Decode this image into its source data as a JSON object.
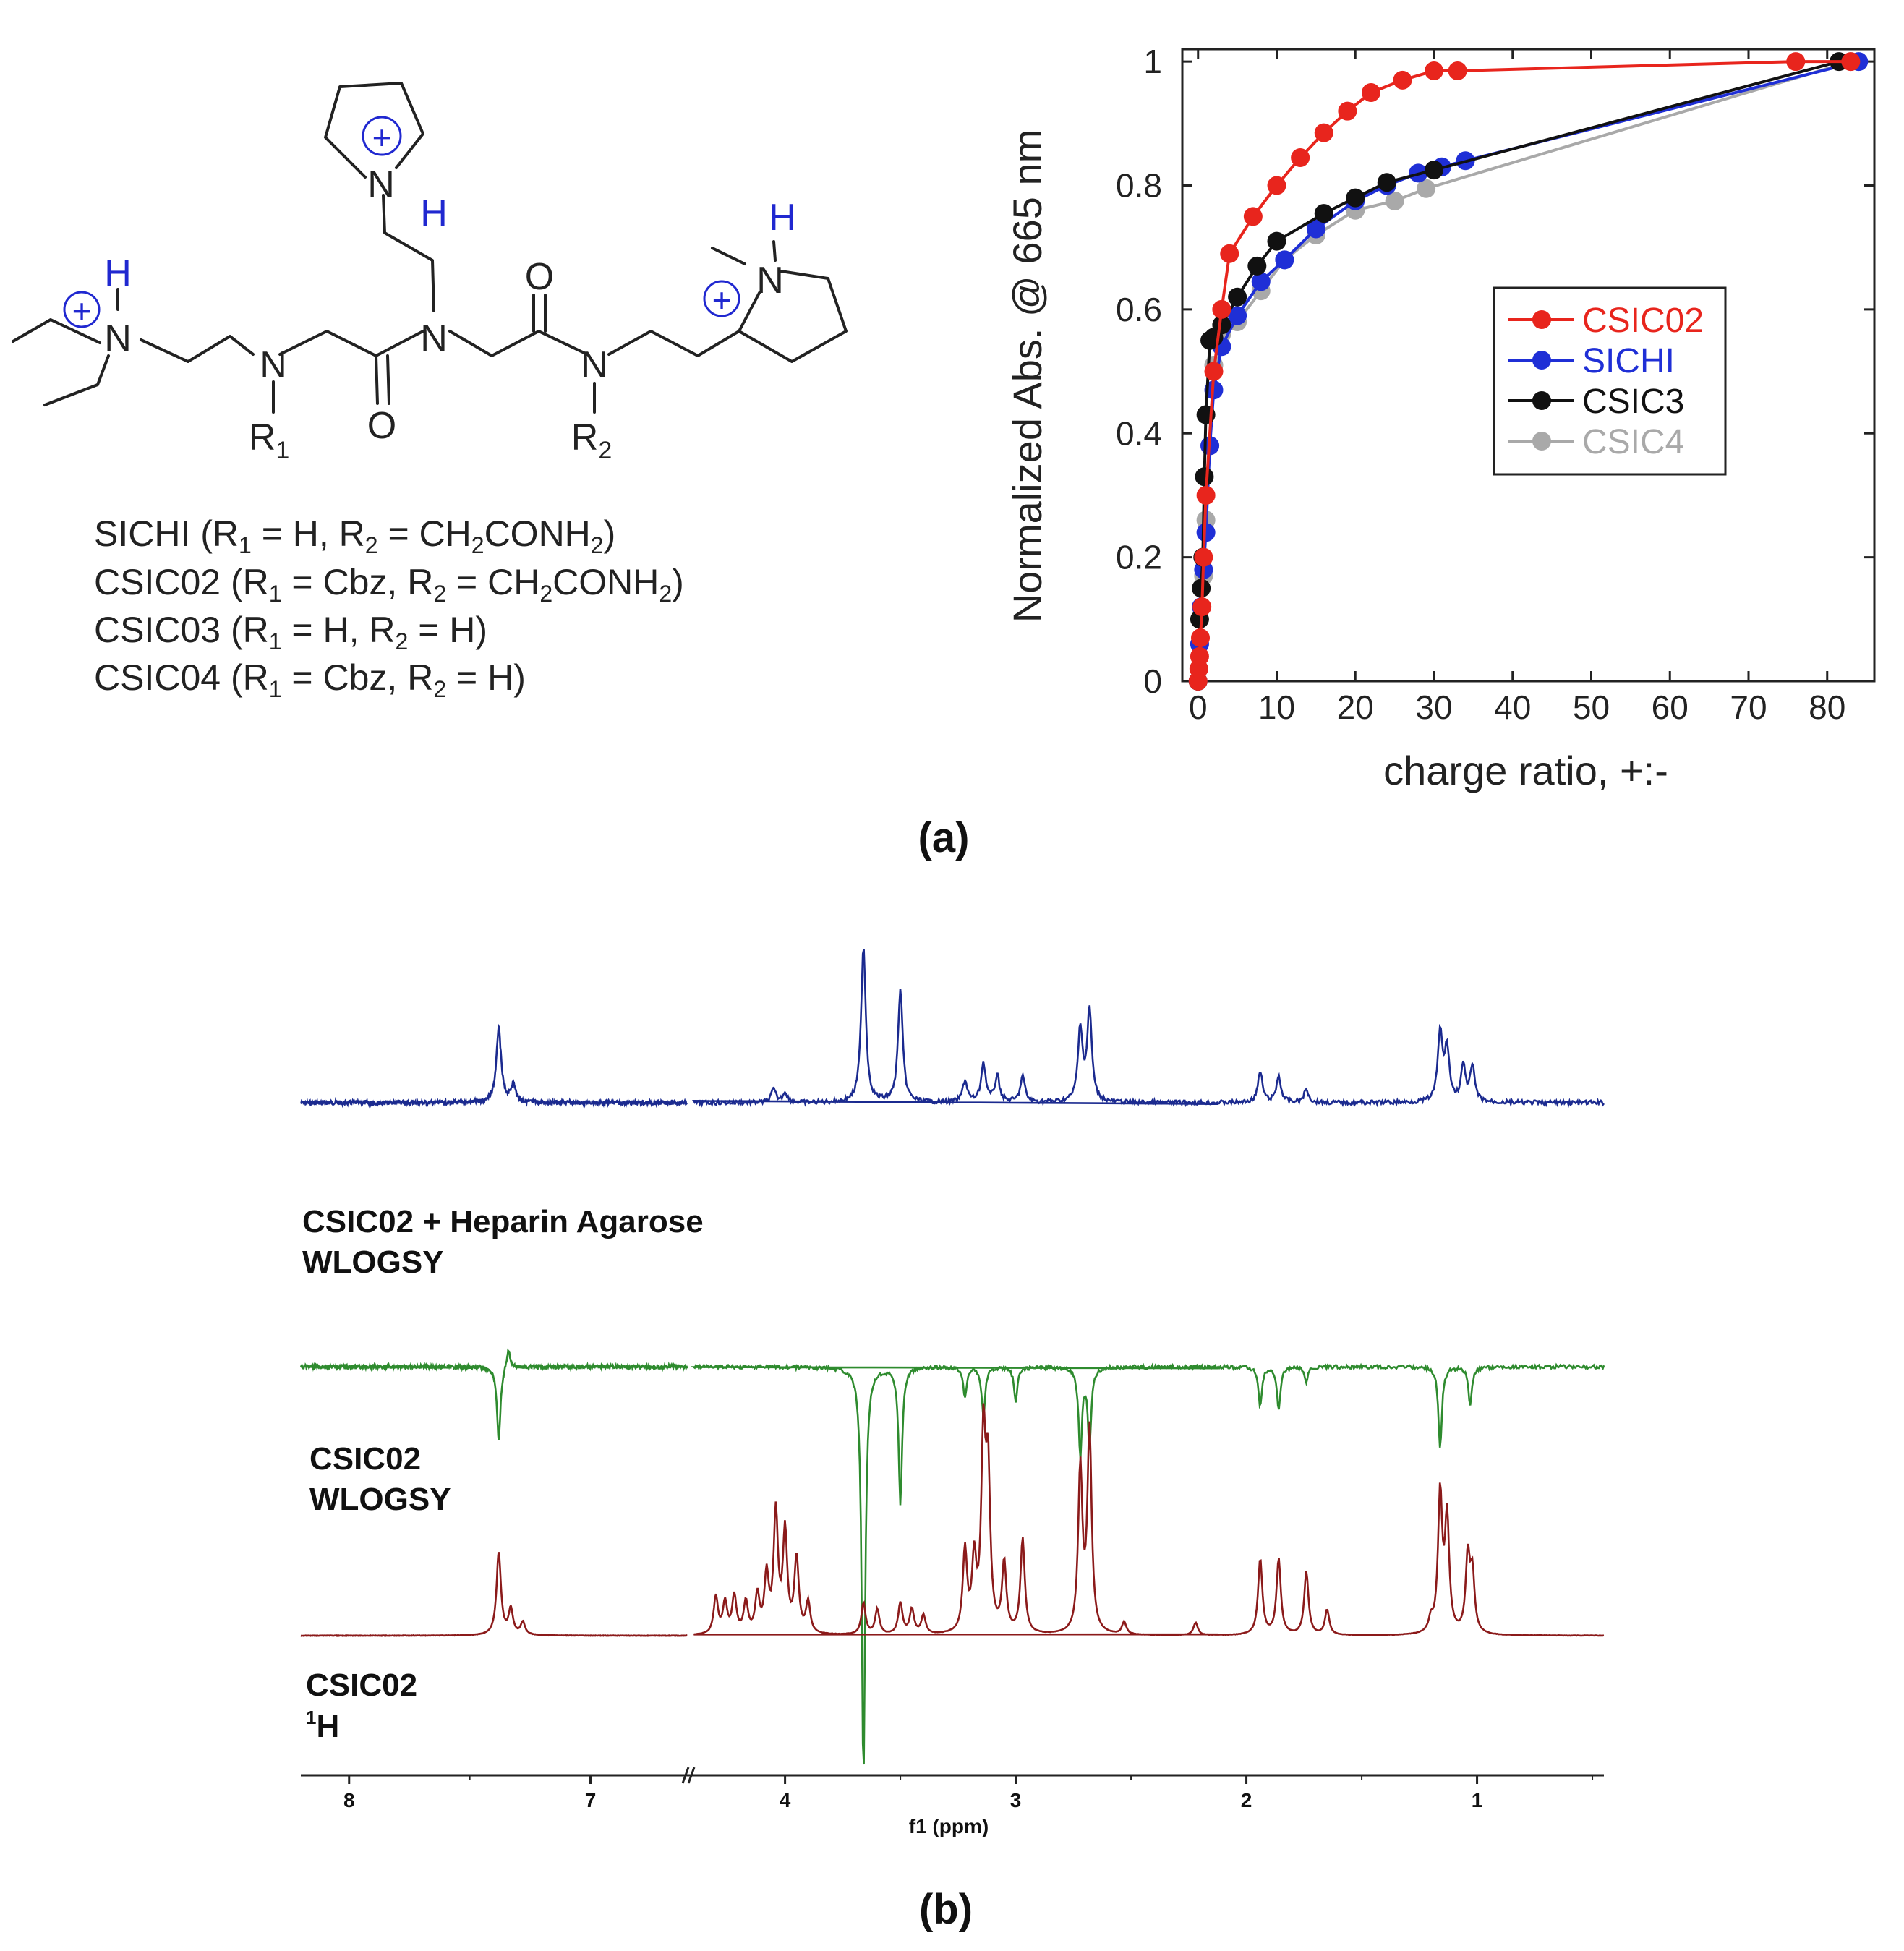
{
  "structure": {
    "atoms": {
      "n": "N",
      "h": "H",
      "r1": "R",
      "r1_sub": "1",
      "r2": "R",
      "r2_sub": "2",
      "o": "O",
      "plus": "+"
    },
    "compounds": [
      {
        "name": "SICHI (R",
        "r1_sub": "1",
        "r1_val": " = H, R",
        "r2_sub": "2",
        "r2_val": " = CH",
        "ch_sub": "2",
        "rest": "CONH",
        "rest_sub": "2",
        "close": ")"
      },
      {
        "name": "CSIC02 (R",
        "r1_sub": "1",
        "r1_val": " = Cbz, R",
        "r2_sub": "2",
        "r2_val": " = CH",
        "ch_sub": "2",
        "rest": "CONH",
        "rest_sub": "2",
        "close": ")"
      },
      {
        "name": "CSIC03 (R",
        "r1_sub": "1",
        "r1_val": " = H, R",
        "r2_sub": "2",
        "r2_val": " = H)",
        "ch_sub": "",
        "rest": "",
        "rest_sub": "",
        "close": ""
      },
      {
        "name": "CSIC04 (R",
        "r1_sub": "1",
        "r1_val": " = Cbz, R",
        "r2_sub": "2",
        "r2_val": " = H)",
        "ch_sub": "",
        "rest": "",
        "rest_sub": "",
        "close": ""
      }
    ]
  },
  "chart_data": [
    {
      "type": "line",
      "markers": "circle",
      "xlabel": "charge ratio, +:-",
      "ylabel": "Normalized Abs. @ 665 nm",
      "xlim": [
        -2,
        86
      ],
      "ylim": [
        0,
        1.02
      ],
      "xticks": [
        0,
        10,
        20,
        30,
        40,
        50,
        60,
        70,
        80
      ],
      "yticks": [
        0,
        0.2,
        0.4,
        0.6,
        0.8,
        1
      ],
      "ytick_labels": [
        "0",
        "0.2",
        "0.4",
        "0.6",
        "0.8",
        "1"
      ],
      "grid": false,
      "legend_position": "middle-right",
      "series": [
        {
          "name": "CSIC02",
          "color": "#e8251d",
          "x": [
            0,
            0.1,
            0.2,
            0.3,
            0.5,
            0.7,
            1,
            2,
            3,
            4,
            7,
            10,
            13,
            16,
            19,
            22,
            26,
            30,
            33,
            76,
            83
          ],
          "y": [
            0.0,
            0.02,
            0.04,
            0.07,
            0.12,
            0.2,
            0.3,
            0.5,
            0.6,
            0.69,
            0.75,
            0.8,
            0.845,
            0.885,
            0.92,
            0.95,
            0.97,
            0.985,
            0.985,
            1.0,
            1.0
          ]
        },
        {
          "name": "SICHI",
          "color": "#1f2fd6",
          "x": [
            0,
            0.2,
            0.4,
            0.7,
            1,
            1.5,
            2,
            3,
            5,
            8,
            11,
            15,
            20,
            24,
            28,
            31,
            34,
            84
          ],
          "y": [
            0.0,
            0.06,
            0.12,
            0.18,
            0.24,
            0.38,
            0.47,
            0.54,
            0.59,
            0.645,
            0.68,
            0.73,
            0.775,
            0.8,
            0.82,
            0.83,
            0.84,
            1.0
          ]
        },
        {
          "name": "CSIC3",
          "color": "#111111",
          "x": [
            0,
            0.2,
            0.4,
            0.6,
            0.8,
            1,
            1.5,
            2,
            3,
            5,
            7.5,
            10,
            16,
            20,
            24,
            30,
            81.5
          ],
          "y": [
            0.0,
            0.1,
            0.15,
            0.2,
            0.33,
            0.43,
            0.55,
            0.555,
            0.575,
            0.62,
            0.67,
            0.71,
            0.755,
            0.78,
            0.805,
            0.825,
            1.0
          ]
        },
        {
          "name": "CSIC4",
          "color": "#a9a9a9",
          "x": [
            0,
            0.2,
            0.4,
            0.7,
            1,
            1.5,
            2,
            3,
            5,
            8,
            11,
            15,
            20,
            25,
            29,
            83
          ],
          "y": [
            0.0,
            0.06,
            0.12,
            0.17,
            0.26,
            0.38,
            0.51,
            0.56,
            0.58,
            0.63,
            0.68,
            0.72,
            0.76,
            0.775,
            0.795,
            1.0
          ]
        }
      ]
    },
    {
      "type": "line",
      "xlabel": "f1 (ppm)",
      "reversed_x": true,
      "broken_axis": true,
      "x_segments": [
        [
          8.2,
          6.6
        ],
        [
          4.4,
          0.45
        ]
      ],
      "xticks": [
        8,
        7,
        4,
        3,
        2,
        1
      ],
      "series": [
        {
          "name": "CSIC02 + Heparin Agarose WLOGSY",
          "color": "#1b2a8f",
          "peaks": [
            [
              7.38,
              0.85
            ],
            [
              7.32,
              0.2
            ],
            [
              4.05,
              0.15
            ],
            [
              4.0,
              0.12
            ],
            [
              3.66,
              1.8
            ],
            [
              3.5,
              1.3
            ],
            [
              3.22,
              0.25
            ],
            [
              3.14,
              0.45
            ],
            [
              3.08,
              0.3
            ],
            [
              2.97,
              0.3
            ],
            [
              2.72,
              0.85
            ],
            [
              2.68,
              1.05
            ],
            [
              1.94,
              0.35
            ],
            [
              1.86,
              0.3
            ],
            [
              1.74,
              0.15
            ],
            [
              1.16,
              0.8
            ],
            [
              1.13,
              0.6
            ],
            [
              1.06,
              0.4
            ],
            [
              1.02,
              0.4
            ]
          ]
        },
        {
          "name": "CSIC02 WLOGSY",
          "color": "#2e8b2e",
          "peaks": [
            [
              7.38,
              -0.75
            ],
            [
              7.34,
              0.2
            ],
            [
              3.66,
              -4.2
            ],
            [
              3.5,
              -1.4
            ],
            [
              3.22,
              -0.3
            ],
            [
              3.14,
              -0.5
            ],
            [
              3.0,
              -0.35
            ],
            [
              2.72,
              -0.9
            ],
            [
              2.68,
              -0.8
            ],
            [
              1.94,
              -0.4
            ],
            [
              1.86,
              -0.45
            ],
            [
              1.74,
              -0.15
            ],
            [
              1.16,
              -0.85
            ],
            [
              1.03,
              -0.4
            ]
          ]
        },
        {
          "name": "CSIC02 ¹H",
          "color": "#8b1a1a",
          "peaks": [
            [
              7.38,
              0.65
            ],
            [
              7.33,
              0.2
            ],
            [
              7.28,
              0.1
            ],
            [
              4.3,
              0.3
            ],
            [
              4.26,
              0.25
            ],
            [
              4.22,
              0.3
            ],
            [
              4.17,
              0.25
            ],
            [
              4.12,
              0.3
            ],
            [
              4.08,
              0.45
            ],
            [
              4.04,
              0.95
            ],
            [
              4.0,
              0.8
            ],
            [
              3.95,
              0.6
            ],
            [
              3.9,
              0.25
            ],
            [
              3.66,
              0.25
            ],
            [
              3.6,
              0.2
            ],
            [
              3.5,
              0.25
            ],
            [
              3.45,
              0.2
            ],
            [
              3.4,
              0.15
            ],
            [
              3.22,
              0.65
            ],
            [
              3.18,
              0.55
            ],
            [
              3.14,
              1.5
            ],
            [
              3.12,
              1.2
            ],
            [
              3.05,
              0.55
            ],
            [
              2.97,
              0.75
            ],
            [
              2.72,
              1.3
            ],
            [
              2.68,
              1.6
            ],
            [
              2.53,
              0.1
            ],
            [
              2.22,
              0.1
            ],
            [
              1.94,
              0.6
            ],
            [
              1.86,
              0.6
            ],
            [
              1.74,
              0.5
            ],
            [
              1.65,
              0.2
            ],
            [
              1.2,
              0.1
            ],
            [
              1.16,
              1.1
            ],
            [
              1.13,
              0.9
            ],
            [
              1.04,
              0.6
            ],
            [
              1.02,
              0.45
            ]
          ]
        }
      ]
    }
  ],
  "labels": {
    "spec1_line1": "CSIC02 + Heparin Agarose",
    "spec1_line2": "WLOGSY",
    "spec2_line1": "CSIC02",
    "spec2_line2": "WLOGSY",
    "spec3_line1": "CSIC02",
    "spec3_sup": "1",
    "spec3_h": "H",
    "panel_a": "(a)",
    "panel_b": "(b)"
  }
}
